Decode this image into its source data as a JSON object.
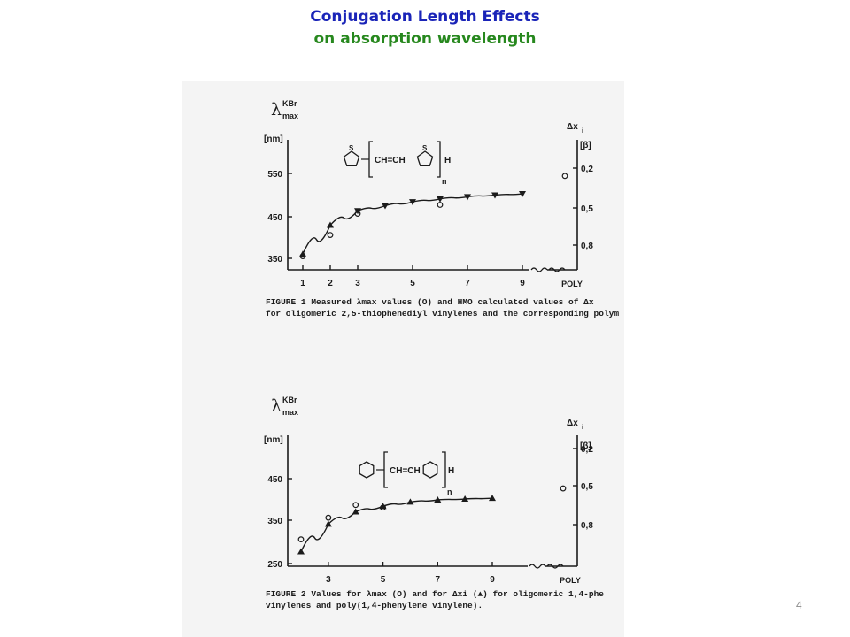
{
  "slide": {
    "title_line1": "Conjugation Length Effects",
    "title_line2": "on absorption wavelength",
    "page_number": "4"
  },
  "chart_data": [
    {
      "type": "scatter",
      "yaxis_label": "λ",
      "yaxis_label_sup": "KBr",
      "yaxis_label_sub": "max",
      "yaxis_unit": "[nm]",
      "y2axis_label": "Δx",
      "y2axis_label_sub": "i",
      "y2axis_unit": "[β]",
      "xlabel": "",
      "xticks": [
        "1",
        "2",
        "3",
        "5",
        "7",
        "9"
      ],
      "xbreak_label": "POLY",
      "yticks": [
        "350",
        "450",
        "550"
      ],
      "ylim": [
        330,
        620
      ],
      "y2ticks": [
        "0,2",
        "0,5",
        "0,8"
      ],
      "structure_label": "CH=CH",
      "structure_subscript": "n",
      "structure_ring_atom": "S",
      "structure_end_group": "H",
      "caption_bold": "FIGURE 1",
      "caption_line1": "Measured λmax values (O) and HMO calculated values of Δx",
      "caption_line2": "for oligomeric 2,5-thiophenediyl vinylenes and the corresponding polym",
      "series": [
        {
          "name": "λmax measured (O)",
          "marker": "open-circle",
          "x": [
            1,
            2,
            3,
            6,
            "POLY"
          ],
          "y": [
            355,
            405,
            455,
            476,
            544
          ]
        },
        {
          "name": "Δx calculated (filled triangles)",
          "marker": "filled-triangle",
          "x": [
            1,
            2,
            3,
            4,
            5,
            6,
            7,
            8,
            9
          ],
          "y": [
            360,
            428,
            462,
            474,
            483,
            490,
            495,
            499,
            502
          ]
        }
      ]
    },
    {
      "type": "scatter",
      "yaxis_label": "λ",
      "yaxis_label_sup": "KBr",
      "yaxis_label_sub": "max",
      "yaxis_unit": "[nm]",
      "y2axis_label": "Δx",
      "y2axis_label_sub": "i",
      "y2axis_unit": "[β]",
      "xlabel": "",
      "xticks": [
        "3",
        "5",
        "7",
        "9"
      ],
      "xbreak_label": "POLY",
      "yticks": [
        "250",
        "350",
        "450"
      ],
      "ylim": [
        245,
        540
      ],
      "y2ticks": [
        "0,2",
        "0,5",
        "0,8"
      ],
      "structure_label": "CH=CH",
      "structure_subscript": "n",
      "structure_end_group": "H",
      "caption_bold": "FIGURE 2",
      "caption_line1": "Values for λmax (O) and for Δxi (▲) for oligomeric 1,4-phe",
      "caption_line2": "vinylenes and poly(1,4-phenylene vinylene).",
      "series": [
        {
          "name": "λmax (O)",
          "marker": "open-circle",
          "x": [
            2,
            3,
            4,
            5,
            "POLY"
          ],
          "y": [
            307,
            358,
            388,
            382,
            427
          ]
        },
        {
          "name": "Δxi (▲)",
          "marker": "filled-triangle",
          "x": [
            2,
            3,
            4,
            5,
            6,
            7,
            8,
            9
          ],
          "y": [
            278,
            343,
            372,
            385,
            395,
            400,
            402,
            404
          ]
        }
      ]
    }
  ]
}
